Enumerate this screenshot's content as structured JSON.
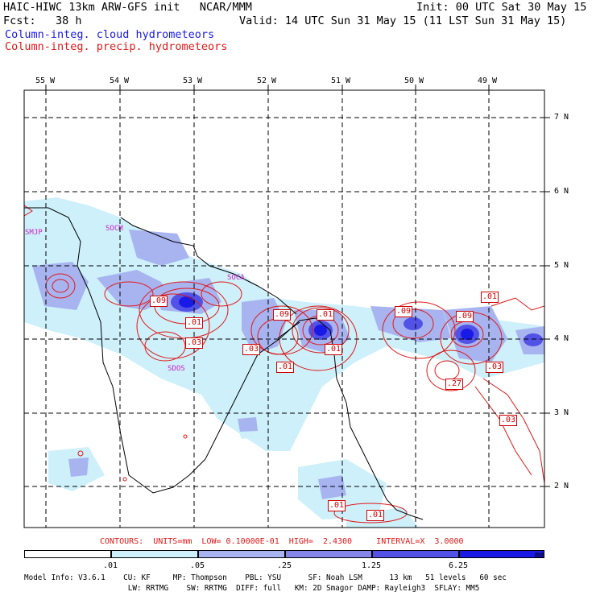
{
  "header": {
    "line1_left": "HAIC-HIWC 13km ARW-GFS init   NCAR/MMM",
    "line1_right": "Init: 00 UTC Sat 30 May 15",
    "line2_left": "Fcst:   38 h",
    "line2_right": "Valid: 14 UTC Sun 31 May 15 (11 LST Sun 31 May 15)",
    "field1": "Column-integ. cloud hydrometeors",
    "field2": "Column-integ. precip. hydrometeors"
  },
  "axes": {
    "lon_labels": [
      "55 W",
      "54 W",
      "53 W",
      "52 W",
      "51 W",
      "50 W",
      "49 W"
    ],
    "lat_labels": [
      "7 N",
      "6 N",
      "5 N",
      "4 N",
      "3 N",
      "2 N"
    ]
  },
  "stations": [
    "SMJP",
    "SOCA",
    "SDOS",
    "SOCM"
  ],
  "contour_labels": [
    ".09",
    ".01",
    ".03",
    ".09",
    ".01",
    ".03",
    ".01",
    ".01",
    ".09",
    ".09",
    ".01",
    ".03",
    ".27",
    ".03",
    ".01",
    ".01"
  ],
  "contour_info": "CONTOURS:  UNITS=mm  LOW= 0.10000E-01  HIGH=  2.4300     INTERVAL=X  3.0000",
  "colorbar": {
    "values": [
      ".01",
      ".05",
      ".25",
      "1.25",
      "6.25"
    ],
    "unit": "mm",
    "colors": [
      "#ffffff",
      "#cdf0fa",
      "#a8b4f0",
      "#8585ea",
      "#5252e6",
      "#1a1ae6"
    ]
  },
  "model_info": {
    "line1": "Model Info: V3.6.1    CU: KF     MP: Thompson    PBL: YSU      SF: Noah LSM      13 km   51 levels   60 sec",
    "line2": "                       LW: RRTMG    SW: RRTMG  DIFF: full   KM: 2D Smagor DAMP: Rayleigh3  SFLAY: MM5"
  },
  "colors": {
    "cloud": "#1a1ae6",
    "precip": "#e01818",
    "grid": "#000000",
    "station": "#cc22cc"
  }
}
